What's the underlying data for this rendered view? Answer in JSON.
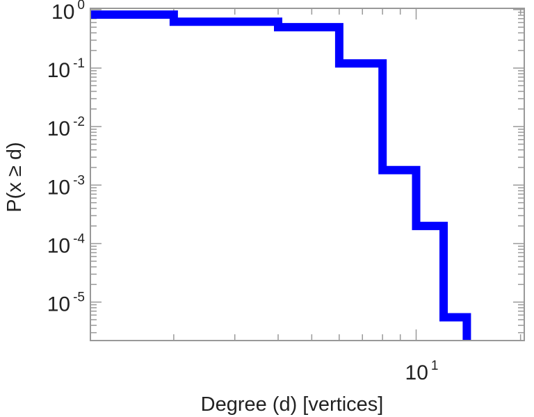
{
  "chart_data": {
    "type": "line",
    "step": true,
    "title": "",
    "xlabel": "Degree (d) [vertices]",
    "ylabel": "P(x ≥ d)",
    "xscale": "log",
    "yscale": "log",
    "xlim": [
      1.15,
      20.5
    ],
    "ylim": [
      2.2e-06,
      1.05
    ],
    "grid": false,
    "legend": "none",
    "x_ticks": [
      {
        "base": "10",
        "exp": "1",
        "value": 10
      }
    ],
    "y_ticks": [
      {
        "base": "10",
        "exp": "0",
        "value": 1
      },
      {
        "base": "10",
        "exp": "-1",
        "value": 0.1
      },
      {
        "base": "10",
        "exp": "-2",
        "value": 0.01
      },
      {
        "base": "10",
        "exp": "-3",
        "value": 0.001
      },
      {
        "base": "10",
        "exp": "-4",
        "value": 0.0001
      },
      {
        "base": "10",
        "exp": "-5",
        "value": 1e-05
      }
    ],
    "series": [
      {
        "color": "#0000ff",
        "points": [
          {
            "x": 1.15,
            "y": 0.82
          },
          {
            "x": 2,
            "y": 0.82
          },
          {
            "x": 2,
            "y": 0.62
          },
          {
            "x": 4,
            "y": 0.62
          },
          {
            "x": 4,
            "y": 0.5
          },
          {
            "x": 6,
            "y": 0.5
          },
          {
            "x": 6,
            "y": 0.12
          },
          {
            "x": 8,
            "y": 0.12
          },
          {
            "x": 8,
            "y": 0.0018
          },
          {
            "x": 10,
            "y": 0.0018
          },
          {
            "x": 10,
            "y": 0.0002
          },
          {
            "x": 12,
            "y": 0.0002
          },
          {
            "x": 12,
            "y": 5.5e-06
          },
          {
            "x": 14,
            "y": 5.5e-06
          },
          {
            "x": 14,
            "y": 2.2e-06
          }
        ]
      }
    ]
  }
}
